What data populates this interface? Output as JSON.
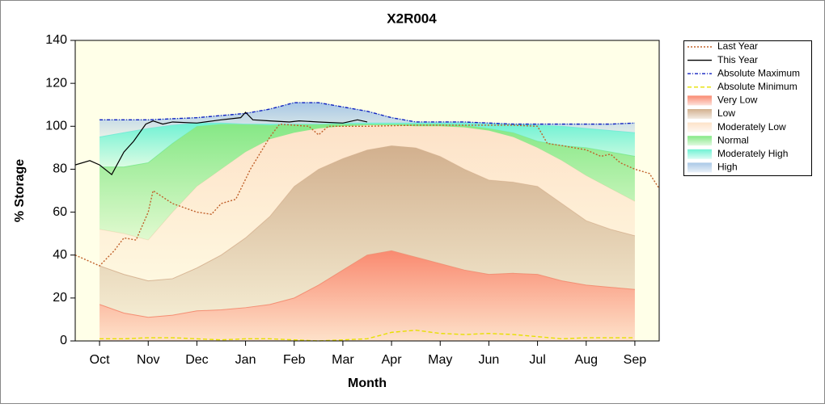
{
  "chart_data": {
    "type": "line",
    "title": "X2R004",
    "x_label": "Month",
    "y_label": "% Storage",
    "xlim": [
      0,
      12
    ],
    "xticks": [
      {
        "value": 0.5,
        "label": "Oct"
      },
      {
        "value": 1.5,
        "label": "Nov"
      },
      {
        "value": 2.5,
        "label": "Dec"
      },
      {
        "value": 3.5,
        "label": "Jan"
      },
      {
        "value": 4.5,
        "label": "Feb"
      },
      {
        "value": 5.5,
        "label": "Mar"
      },
      {
        "value": 6.5,
        "label": "Apr"
      },
      {
        "value": 7.5,
        "label": "May"
      },
      {
        "value": 8.5,
        "label": "Jun"
      },
      {
        "value": 9.5,
        "label": "Jul"
      },
      {
        "value": 10.5,
        "label": "Aug"
      },
      {
        "value": 11.5,
        "label": "Sep"
      }
    ],
    "ylim": [
      0,
      140
    ],
    "yticks": [
      0,
      20,
      40,
      60,
      80,
      100,
      120,
      140
    ],
    "legend": "right",
    "series": [
      {
        "name": "Last Year",
        "type": "line",
        "style": "dotted",
        "color": "#c0602a",
        "x": [
          0,
          0.5,
          0.8,
          1,
          1.25,
          1.5,
          1.6,
          2,
          2.5,
          2.8,
          3,
          3.3,
          3.6,
          4,
          4.2,
          4.5,
          4.8,
          5,
          5.2,
          6,
          7,
          8,
          9,
          9.5,
          9.7,
          10,
          10.5,
          10.8,
          11,
          11.2,
          11.5,
          11.8,
          12
        ],
        "values": [
          40,
          35,
          42,
          48,
          47,
          60,
          70,
          64,
          60,
          59,
          64,
          66,
          80,
          95,
          101,
          100.5,
          100,
          96,
          100,
          100,
          100.5,
          100.5,
          100.5,
          100,
          92,
          91,
          89,
          86,
          87,
          83,
          80,
          78,
          71
        ]
      },
      {
        "name": "This Year",
        "type": "line",
        "style": "solid",
        "color": "#000000",
        "x": [
          0,
          0.3,
          0.5,
          0.75,
          1,
          1.2,
          1.45,
          1.6,
          1.8,
          2,
          2.5,
          3,
          3.4,
          3.5,
          3.65,
          4,
          4.4,
          4.6,
          5,
          5.5,
          5.8,
          6
        ],
        "values": [
          82,
          84,
          82,
          77.5,
          88,
          93,
          101,
          102.5,
          101,
          102,
          101.5,
          103,
          104,
          106.5,
          103,
          102.5,
          102,
          102.5,
          102,
          101.5,
          103,
          102
        ]
      },
      {
        "name": "Absolute Maximum",
        "type": "line",
        "style": "dashdot",
        "color": "#1020c0",
        "x": [
          0.5,
          1,
          1.5,
          2,
          2.5,
          3,
          3.5,
          4,
          4.5,
          5,
          5.5,
          6,
          6.5,
          7,
          7.5,
          8,
          8.5,
          9,
          9.5,
          10,
          10.5,
          11,
          11.5
        ],
        "values": [
          103,
          103,
          103,
          103.5,
          104,
          105,
          106,
          108,
          111,
          111,
          109,
          107,
          104,
          102,
          102,
          102,
          101.5,
          101,
          101,
          101,
          101,
          101,
          101.5
        ]
      },
      {
        "name": "Absolute Minimum",
        "type": "line",
        "style": "dashed",
        "color": "#e6e000",
        "x": [
          0.5,
          1,
          1.5,
          2,
          2.5,
          3,
          3.5,
          4,
          4.5,
          5,
          5.5,
          6,
          6.5,
          7,
          7.5,
          8,
          8.5,
          9,
          9.5,
          10,
          10.5,
          11,
          11.5
        ],
        "values": [
          1,
          1,
          1.5,
          1.5,
          1,
          0.5,
          1,
          1,
          0.5,
          0,
          0.5,
          1,
          4,
          5,
          3.5,
          3,
          3.5,
          3,
          2,
          1,
          1.5,
          1.5,
          1.5
        ]
      },
      {
        "name": "Very Low",
        "type": "band",
        "color": "#f98a70",
        "x": [
          0.5,
          1,
          1.5,
          2,
          2.5,
          3,
          3.5,
          4,
          4.5,
          5,
          5.5,
          6,
          6.5,
          7,
          7.5,
          8,
          8.5,
          9,
          9.5,
          10,
          10.5,
          11,
          11.5
        ],
        "values": [
          17,
          13,
          11,
          12,
          14,
          14.5,
          15.5,
          17,
          20,
          26,
          33,
          40,
          42,
          39,
          36,
          33,
          31,
          31.5,
          31,
          28,
          26,
          25,
          24
        ]
      },
      {
        "name": "Low",
        "type": "band",
        "color": "#d2b08e",
        "x": [
          0.5,
          1,
          1.5,
          2,
          2.5,
          3,
          3.5,
          4,
          4.5,
          5,
          5.5,
          6,
          6.5,
          7,
          7.5,
          8,
          8.5,
          9,
          9.5,
          10,
          10.5,
          11,
          11.5
        ],
        "values": [
          35,
          31,
          28,
          29,
          34,
          40,
          48,
          58,
          72,
          80,
          85,
          89,
          91,
          90,
          86,
          80,
          75,
          74,
          72,
          64,
          56,
          52,
          49
        ]
      },
      {
        "name": "Moderately Low",
        "type": "band",
        "color": "#fde2c8",
        "x": [
          0.5,
          1,
          1.5,
          2,
          2.5,
          3,
          3.5,
          4,
          4.5,
          5,
          5.5,
          6,
          6.5,
          7,
          7.5,
          8,
          8.5,
          9,
          9.5,
          10,
          10.5,
          11,
          11.5
        ],
        "values": [
          52,
          50,
          47,
          60,
          72,
          80,
          88,
          94,
          97,
          99,
          100,
          100.5,
          100.5,
          100,
          100,
          99.5,
          98,
          95,
          90,
          84,
          77,
          71,
          65
        ]
      },
      {
        "name": "Normal",
        "type": "band",
        "color": "#86e886",
        "x": [
          0.5,
          1,
          1.5,
          2,
          2.5,
          3,
          3.5,
          4,
          4.5,
          5,
          5.5,
          6,
          6.5,
          7,
          7.5,
          8,
          8.5,
          9,
          9.5,
          10,
          10.5,
          11,
          11.5
        ],
        "values": [
          81,
          81,
          83,
          92,
          100,
          101,
          101,
          100.5,
          101,
          101,
          101,
          101,
          101,
          101,
          101,
          100.5,
          99,
          97,
          93,
          91,
          90,
          88,
          86
        ]
      },
      {
        "name": "Moderately High",
        "type": "band",
        "color": "#70f2d4",
        "x": [
          0.5,
          1,
          1.5,
          2,
          2.5,
          3,
          3.5,
          4,
          4.5,
          5,
          5.5,
          6,
          6.5,
          7,
          7.5,
          8,
          8.5,
          9,
          9.5,
          10,
          10.5,
          11,
          11.5
        ],
        "values": [
          95,
          97,
          99,
          100.5,
          101.5,
          101.5,
          101,
          101,
          101,
          101,
          101.5,
          101.5,
          101.5,
          101.5,
          101.5,
          101.5,
          101,
          101,
          100.5,
          100,
          99,
          98,
          97
        ]
      },
      {
        "name": "High",
        "type": "band",
        "color": "#a9c8e6",
        "x": [
          0.5,
          1,
          1.5,
          2,
          2.5,
          3,
          3.5,
          4,
          4.5,
          5,
          5.5,
          6,
          6.5,
          7,
          7.5,
          8,
          8.5,
          9,
          9.5,
          10,
          10.5,
          11,
          11.5
        ],
        "values": [
          103,
          103,
          103,
          103.5,
          104,
          105,
          106,
          108,
          111,
          111,
          109,
          107,
          104,
          102,
          102,
          102,
          101.5,
          101,
          101,
          101,
          101,
          101,
          101.5
        ]
      }
    ]
  }
}
